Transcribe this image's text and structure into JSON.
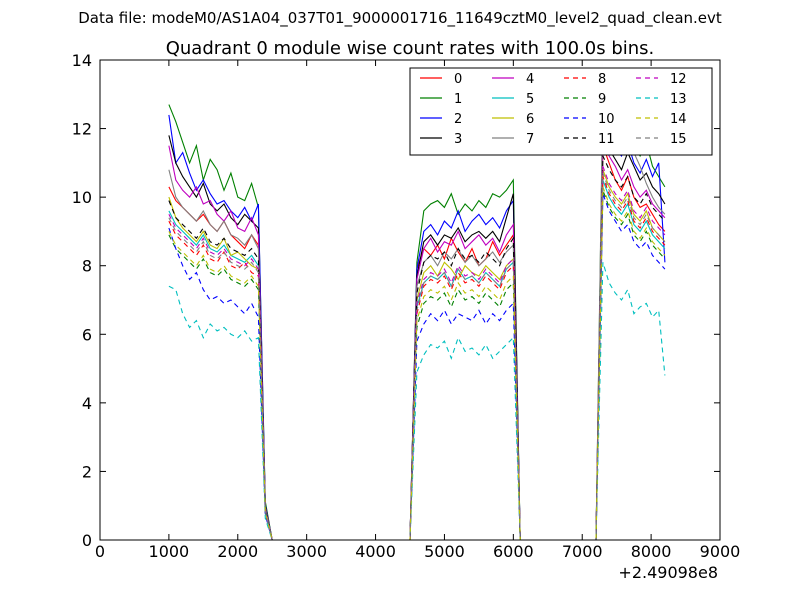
{
  "header": {
    "file_title": "Data file: modeM0/AS1A04_037T01_9000001716_11649cztM0_level2_quad_clean.evt"
  },
  "chart_data": {
    "type": "line",
    "title": "Quadrant 0 module wise count rates with 100.0s bins.",
    "xlabel": "",
    "ylabel": "",
    "x_offset_label": "+2.49098e8",
    "xlim": [
      0,
      9000
    ],
    "ylim": [
      0,
      14
    ],
    "xticks": [
      0,
      1000,
      2000,
      3000,
      4000,
      5000,
      6000,
      7000,
      8000,
      9000
    ],
    "yticks": [
      0,
      2,
      4,
      6,
      8,
      10,
      12,
      14
    ],
    "grid": false,
    "legend_position": "top-right",
    "legend_columns": 4,
    "segments": [
      {
        "x_start": 1000,
        "x_end": 2300,
        "x_drop": [
          2400,
          2500
        ]
      },
      {
        "x_start": 4600,
        "x_end": 6000,
        "x_drop": [
          6100
        ]
      },
      {
        "x_start": 7300,
        "x_end": 8200,
        "x_drop": []
      }
    ],
    "gaps_x": [
      2500,
      4500,
      6100,
      7100
    ],
    "series": [
      {
        "name": "0",
        "color": "#ff0000",
        "dash": "solid",
        "seg_levels": [
          9.1,
          8.3,
          9.8
        ],
        "seg_values": [
          [
            10.3,
            9.9,
            9.7,
            9.5,
            9.3,
            9.5,
            9.2,
            9.0,
            9.3,
            8.9,
            8.7,
            8.5,
            8.9,
            8.6
          ],
          [
            7.9,
            8.5,
            8.3,
            8.6,
            8.2,
            8.8,
            8.4,
            8.1,
            8.5,
            8.0,
            8.2,
            8.7,
            8.3,
            8.6,
            8.9
          ],
          [
            11.5,
            11.0,
            10.5,
            10.2,
            10.6,
            10.0,
            9.7,
            9.8,
            9.5,
            9.2,
            9.0
          ]
        ]
      },
      {
        "name": "1",
        "color": "#008000",
        "dash": "solid",
        "seg_levels": [
          11.2,
          9.9,
          12.2
        ],
        "seg_values": [
          [
            12.7,
            12.2,
            11.6,
            11.0,
            11.5,
            10.5,
            11.1,
            10.8,
            10.2,
            10.7,
            10.0,
            9.9,
            10.4,
            9.7
          ],
          [
            8.1,
            9.6,
            9.8,
            9.9,
            9.7,
            10.1,
            9.5,
            9.8,
            9.6,
            9.9,
            9.7,
            10.1,
            10.0,
            10.2,
            10.5
          ],
          [
            12.9,
            12.5,
            12.0,
            11.8,
            12.2,
            11.5,
            11.2,
            11.6,
            10.9,
            10.6,
            10.3
          ]
        ]
      },
      {
        "name": "2",
        "color": "#0000ff",
        "dash": "solid",
        "seg_levels": [
          10.3,
          9.1,
          11.4
        ],
        "seg_values": [
          [
            12.4,
            11.0,
            11.3,
            10.7,
            10.2,
            10.5,
            10.1,
            9.8,
            9.9,
            9.6,
            9.4,
            9.7,
            9.3,
            9.8
          ],
          [
            7.9,
            9.0,
            9.2,
            8.9,
            9.3,
            9.1,
            9.6,
            9.0,
            9.3,
            9.5,
            9.2,
            9.4,
            9.1,
            9.6,
            9.9
          ],
          [
            12.2,
            11.8,
            11.4,
            11.2,
            11.6,
            11.0,
            10.7,
            11.1,
            10.6,
            11.0,
            8.1
          ]
        ]
      },
      {
        "name": "3",
        "color": "#000000",
        "dash": "solid",
        "seg_levels": [
          10.0,
          8.8,
          11.2
        ],
        "seg_values": [
          [
            11.8,
            11.0,
            10.6,
            10.3,
            10.0,
            10.4,
            9.8,
            9.6,
            9.8,
            9.4,
            9.2,
            9.5,
            9.3,
            9.1
          ],
          [
            7.7,
            8.7,
            8.9,
            8.6,
            8.9,
            8.8,
            9.1,
            8.7,
            8.9,
            9.0,
            8.8,
            9.0,
            8.7,
            9.4,
            10.1
          ],
          [
            12.0,
            11.4,
            11.1,
            10.8,
            11.3,
            10.9,
            10.5,
            10.7,
            10.3,
            10.1,
            9.8
          ]
        ]
      },
      {
        "name": "4",
        "color": "#bf00bf",
        "dash": "solid",
        "seg_levels": [
          9.6,
          8.6,
          10.6
        ],
        "seg_values": [
          [
            11.5,
            10.5,
            10.2,
            10.0,
            10.3,
            9.8,
            9.9,
            9.5,
            9.3,
            9.6,
            9.1,
            9.0,
            9.4,
            8.9
          ],
          [
            7.6,
            8.5,
            8.8,
            8.4,
            8.7,
            8.6,
            9.0,
            8.5,
            8.7,
            8.9,
            8.6,
            8.8,
            8.4,
            8.9,
            9.2
          ],
          [
            11.8,
            11.2,
            10.9,
            10.5,
            10.8,
            10.3,
            10.0,
            10.2,
            9.8,
            9.6,
            9.4
          ]
        ]
      },
      {
        "name": "5",
        "color": "#00bfbf",
        "dash": "solid",
        "seg_levels": [
          8.7,
          7.7,
          9.5
        ],
        "seg_values": [
          [
            9.6,
            9.2,
            9.0,
            8.8,
            8.6,
            8.9,
            8.5,
            8.4,
            8.6,
            8.3,
            8.2,
            8.1,
            8.3,
            8.0
          ],
          [
            6.8,
            7.5,
            7.7,
            7.6,
            7.8,
            7.4,
            7.9,
            7.6,
            7.7,
            7.5,
            7.8,
            7.6,
            7.4,
            7.9,
            8.1
          ],
          [
            10.5,
            10.0,
            9.7,
            9.5,
            9.8,
            9.2,
            9.0,
            9.3,
            8.9,
            8.7,
            8.5
          ]
        ]
      },
      {
        "name": "6",
        "color": "#bfbf00",
        "dash": "solid",
        "seg_levels": [
          8.9,
          7.9,
          9.8
        ],
        "seg_values": [
          [
            10.0,
            9.4,
            9.1,
            8.9,
            8.7,
            9.0,
            8.6,
            8.5,
            8.8,
            8.3,
            8.4,
            8.2,
            8.0,
            7.9
          ],
          [
            7.0,
            7.8,
            8.0,
            7.7,
            8.1,
            7.9,
            7.6,
            8.0,
            7.8,
            7.7,
            8.0,
            7.8,
            7.6,
            8.0,
            8.2
          ],
          [
            10.8,
            10.3,
            10.0,
            9.8,
            10.1,
            9.5,
            9.3,
            9.6,
            9.1,
            8.9,
            8.7
          ]
        ]
      },
      {
        "name": "7",
        "color": "#808080",
        "dash": "solid",
        "seg_levels": [
          9.3,
          8.2,
          11.5
        ],
        "seg_values": [
          [
            10.8,
            10.0,
            9.7,
            9.5,
            9.3,
            9.6,
            9.2,
            9.0,
            9.3,
            8.9,
            8.8,
            8.6,
            8.9,
            8.5
          ],
          [
            7.4,
            8.1,
            8.3,
            8.0,
            8.4,
            8.2,
            8.5,
            8.1,
            8.3,
            8.0,
            8.2,
            8.4,
            8.1,
            8.4,
            8.6
          ],
          [
            13.2,
            13.0,
            13.1,
            12.2,
            11.8,
            11.3,
            10.9,
            10.4,
            10.0,
            9.7,
            9.5
          ]
        ]
      },
      {
        "name": "8",
        "color": "#ff0000",
        "dash": "dashed",
        "seg_levels": [
          8.4,
          7.6,
          9.6
        ],
        "seg_values": [
          [
            9.3,
            8.9,
            8.7,
            8.5,
            8.3,
            8.6,
            8.2,
            8.1,
            8.4,
            8.0,
            7.9,
            8.1,
            7.8,
            7.7
          ],
          [
            6.6,
            7.4,
            7.6,
            7.5,
            7.7,
            7.3,
            7.8,
            7.5,
            7.6,
            7.4,
            7.7,
            7.5,
            7.3,
            7.8,
            8.0
          ],
          [
            10.6,
            10.1,
            9.8,
            9.6,
            9.9,
            9.3,
            9.1,
            9.4,
            9.0,
            8.8,
            8.6
          ]
        ]
      },
      {
        "name": "9",
        "color": "#008000",
        "dash": "dashed",
        "seg_levels": [
          8.0,
          7.1,
          9.2
        ],
        "seg_values": [
          [
            8.9,
            8.5,
            8.3,
            8.1,
            7.9,
            8.2,
            7.8,
            7.7,
            7.9,
            7.6,
            7.5,
            7.4,
            7.6,
            7.3
          ],
          [
            6.2,
            6.9,
            7.1,
            7.0,
            7.2,
            6.8,
            7.3,
            7.0,
            7.1,
            6.9,
            7.2,
            7.0,
            6.8,
            7.3,
            7.5
          ],
          [
            10.2,
            9.7,
            9.4,
            9.2,
            9.5,
            8.9,
            8.7,
            9.0,
            8.6,
            8.4,
            8.2
          ]
        ]
      },
      {
        "name": "10",
        "color": "#0000ff",
        "dash": "dashed",
        "seg_levels": [
          7.3,
          6.5,
          9.0
        ],
        "seg_values": [
          [
            9.1,
            8.5,
            8.0,
            7.6,
            7.8,
            7.3,
            7.0,
            7.1,
            6.9,
            7.0,
            6.8,
            6.6,
            6.9,
            6.5
          ],
          [
            5.8,
            6.3,
            6.6,
            6.4,
            6.7,
            6.3,
            6.6,
            6.5,
            6.4,
            6.7,
            6.3,
            6.6,
            6.4,
            6.7,
            6.9
          ],
          [
            10.1,
            9.6,
            9.3,
            9.0,
            9.2,
            8.7,
            8.5,
            8.7,
            8.3,
            8.1,
            7.9
          ]
        ]
      },
      {
        "name": "11",
        "color": "#000000",
        "dash": "dashed",
        "seg_levels": [
          8.9,
          8.3,
          10.3
        ],
        "seg_values": [
          [
            9.9,
            9.4,
            9.2,
            9.0,
            8.8,
            9.1,
            8.7,
            8.6,
            8.8,
            8.5,
            8.4,
            8.3,
            8.5,
            8.2
          ],
          [
            7.2,
            8.1,
            8.3,
            8.2,
            8.4,
            8.0,
            8.5,
            8.2,
            8.3,
            8.1,
            8.4,
            8.2,
            8.0,
            8.5,
            8.8
          ],
          [
            11.2,
            10.8,
            10.5,
            10.3,
            10.6,
            10.0,
            9.8,
            10.1,
            9.7,
            9.5,
            9.3
          ]
        ]
      },
      {
        "name": "12",
        "color": "#bf00bf",
        "dash": "dashed",
        "seg_levels": [
          8.6,
          7.8,
          9.9
        ],
        "seg_values": [
          [
            9.5,
            9.1,
            8.9,
            8.7,
            8.5,
            8.8,
            8.4,
            8.3,
            8.5,
            8.2,
            8.1,
            8.0,
            8.2,
            7.9
          ],
          [
            6.9,
            7.6,
            7.8,
            7.7,
            7.9,
            7.5,
            8.0,
            7.7,
            7.8,
            7.6,
            7.9,
            7.7,
            7.5,
            8.0,
            8.2
          ],
          [
            10.9,
            10.4,
            10.1,
            9.9,
            10.2,
            9.6,
            9.4,
            9.7,
            9.3,
            9.1,
            8.9
          ]
        ]
      },
      {
        "name": "13",
        "color": "#00bfbf",
        "dash": "dashed",
        "seg_levels": [
          6.3,
          5.8,
          6.9
        ],
        "seg_values": [
          [
            7.4,
            7.3,
            6.6,
            6.2,
            6.4,
            5.9,
            6.3,
            6.1,
            6.2,
            6.0,
            5.9,
            6.1,
            5.8,
            5.9
          ],
          [
            4.9,
            5.4,
            5.7,
            5.6,
            5.8,
            5.3,
            5.9,
            5.5,
            5.6,
            5.4,
            5.7,
            5.3,
            5.5,
            5.7,
            5.9
          ],
          [
            8.1,
            7.5,
            7.2,
            7.0,
            7.3,
            6.6,
            6.8,
            6.9,
            6.5,
            6.7,
            4.8
          ]
        ]
      },
      {
        "name": "14",
        "color": "#bfbf00",
        "dash": "dashed",
        "seg_levels": [
          8.2,
          7.4,
          9.3
        ],
        "seg_values": [
          [
            9.0,
            8.6,
            8.4,
            8.2,
            8.0,
            8.3,
            7.9,
            7.8,
            8.0,
            7.7,
            7.6,
            7.5,
            7.7,
            7.4
          ],
          [
            6.4,
            7.1,
            7.3,
            7.2,
            7.4,
            7.0,
            7.5,
            7.2,
            7.3,
            7.1,
            7.4,
            7.2,
            7.0,
            7.5,
            7.7
          ],
          [
            10.3,
            9.8,
            9.5,
            9.3,
            9.6,
            9.0,
            8.8,
            9.1,
            8.7,
            8.5,
            8.3
          ]
        ]
      },
      {
        "name": "15",
        "color": "#808080",
        "dash": "dashed",
        "seg_levels": [
          8.5,
          7.7,
          9.7
        ],
        "seg_values": [
          [
            9.4,
            9.0,
            8.8,
            8.6,
            8.4,
            8.7,
            8.3,
            8.2,
            8.4,
            8.1,
            8.0,
            7.9,
            8.1,
            7.8
          ],
          [
            6.7,
            7.5,
            7.7,
            7.6,
            7.8,
            7.4,
            7.9,
            7.6,
            7.7,
            7.5,
            7.8,
            7.6,
            7.4,
            7.9,
            8.1
          ],
          [
            10.7,
            10.2,
            9.9,
            9.7,
            10.0,
            9.4,
            9.2,
            9.5,
            9.1,
            8.9,
            8.7
          ]
        ]
      }
    ]
  }
}
